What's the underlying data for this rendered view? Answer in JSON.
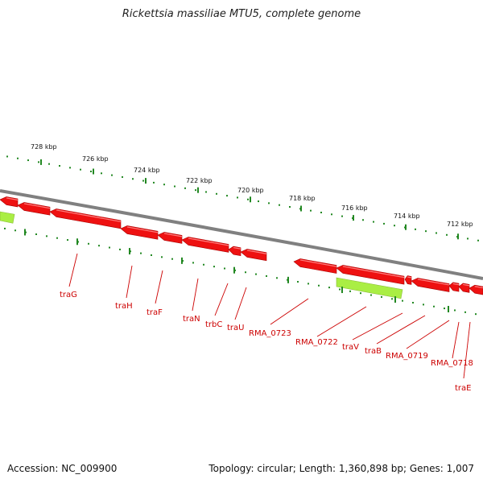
{
  "title": "Rickettsia massiliae MTU5, complete genome",
  "footer": {
    "accession": "Accession: NC_009900",
    "summary": "Topology: circular; Length: 1,360,898 bp; Genes: 1,007"
  },
  "colors": {
    "forward_gene": "#ee1111",
    "reverse_gene": "#aaee44",
    "backbone": "#808080",
    "ticks": "#228822",
    "labels": "#cc0000"
  },
  "kbp_labels": [
    "728 kbp",
    "726 kbp",
    "724 kbp",
    "722 kbp",
    "720 kbp",
    "718 kbp",
    "716 kbp",
    "714 kbp",
    "712 kbp"
  ],
  "gene_labels": [
    "traG",
    "traH",
    "traF",
    "traN",
    "trbC",
    "traU",
    "RMA_0723",
    "RMA_0722",
    "traV",
    "traB",
    "RMA_0719",
    "RMA_0718",
    "traE"
  ]
}
